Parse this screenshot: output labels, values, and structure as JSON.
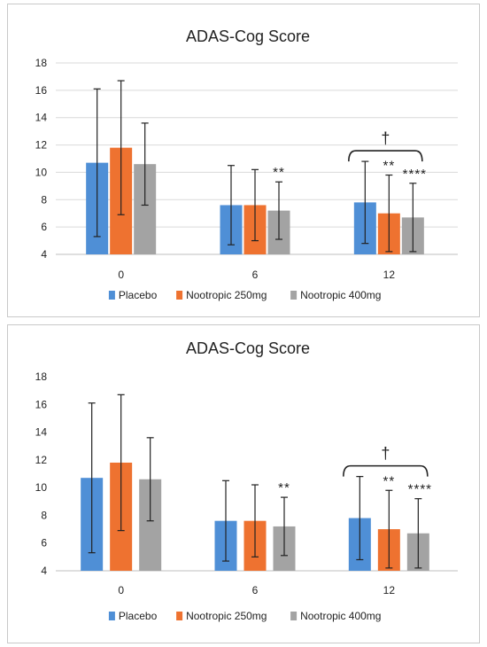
{
  "chart_data": [
    {
      "type": "bar",
      "title": "ADAS-Cog Score",
      "xlabel": "",
      "ylabel": "",
      "categories": [
        "0",
        "6",
        "12"
      ],
      "ylim": [
        4,
        18
      ],
      "yticks": [
        "4",
        "6",
        "8",
        "10",
        "12",
        "14",
        "16",
        "18"
      ],
      "grid": true,
      "legend_position": "bottom",
      "series": [
        {
          "name": "Placebo",
          "color": "#4f8fd6",
          "values": [
            10.7,
            7.6,
            7.8
          ],
          "errors": [
            5.4,
            2.9,
            3.0
          ]
        },
        {
          "name": "Nootropic 250mg",
          "color": "#ee7230",
          "values": [
            11.8,
            7.6,
            7.0
          ],
          "errors": [
            4.9,
            2.6,
            2.8
          ]
        },
        {
          "name": "Nootropic 400mg",
          "color": "#a3a3a3",
          "values": [
            10.6,
            7.2,
            6.7
          ],
          "errors": [
            3.0,
            2.1,
            2.5
          ]
        }
      ],
      "annotations": [
        {
          "text": "**",
          "category": "6",
          "series": "Nootropic 400mg"
        },
        {
          "text": "**",
          "category": "12",
          "series": "Nootropic 250mg"
        },
        {
          "text": "****",
          "category": "12",
          "series": "Nootropic 400mg"
        },
        {
          "text": "†",
          "category": "12",
          "type": "bracket",
          "from": "Placebo",
          "to": "Nootropic 400mg"
        }
      ]
    },
    {
      "type": "bar",
      "title": "ADAS-Cog Score",
      "xlabel": "",
      "ylabel": "",
      "categories": [
        "0",
        "6",
        "12"
      ],
      "ylim": [
        4,
        18
      ],
      "yticks": [
        "4",
        "6",
        "8",
        "10",
        "12",
        "14",
        "16",
        "18"
      ],
      "grid": false,
      "legend_position": "bottom",
      "series": [
        {
          "name": "Placebo",
          "color": "#4f8fd6",
          "values": [
            10.7,
            7.6,
            7.8
          ],
          "errors": [
            5.4,
            2.9,
            3.0
          ]
        },
        {
          "name": "Nootropic 250mg",
          "color": "#ee7230",
          "values": [
            11.8,
            7.6,
            7.0
          ],
          "errors": [
            4.9,
            2.6,
            2.8
          ]
        },
        {
          "name": "Nootropic 400mg",
          "color": "#a3a3a3",
          "values": [
            10.6,
            7.2,
            6.7
          ],
          "errors": [
            3.0,
            2.1,
            2.5
          ]
        }
      ],
      "annotations": [
        {
          "text": "**",
          "category": "6",
          "series": "Nootropic 400mg"
        },
        {
          "text": "**",
          "category": "12",
          "series": "Nootropic 250mg"
        },
        {
          "text": "****",
          "category": "12",
          "series": "Nootropic 400mg"
        },
        {
          "text": "†",
          "category": "12",
          "type": "bracket",
          "from": "Placebo",
          "to": "Nootropic 400mg"
        }
      ]
    }
  ]
}
